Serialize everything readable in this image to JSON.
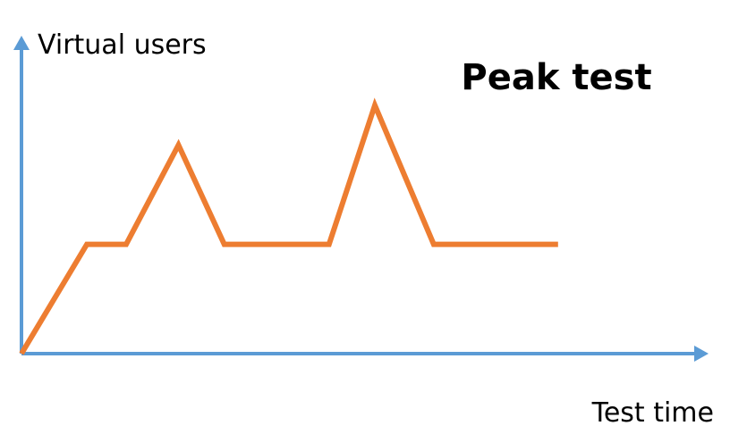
{
  "chart_data": {
    "type": "line",
    "title": "Peak test",
    "xlabel": "Test time",
    "ylabel": "Virtual users",
    "axis_ticks": false,
    "grid": false,
    "x": [
      0,
      1.0,
      1.6,
      2.4,
      3.1,
      4.7,
      5.4,
      6.3,
      8.2
    ],
    "series": [
      {
        "values": [
          0,
          1.1,
          1.1,
          2.1,
          1.1,
          1.1,
          2.5,
          1.1,
          1.1
        ]
      }
    ],
    "xlim": [
      0,
      10.5
    ],
    "ylim": [
      0,
      3.2
    ],
    "colors": {
      "axes": "#5B9BD5",
      "series": "#ED7D31"
    }
  }
}
